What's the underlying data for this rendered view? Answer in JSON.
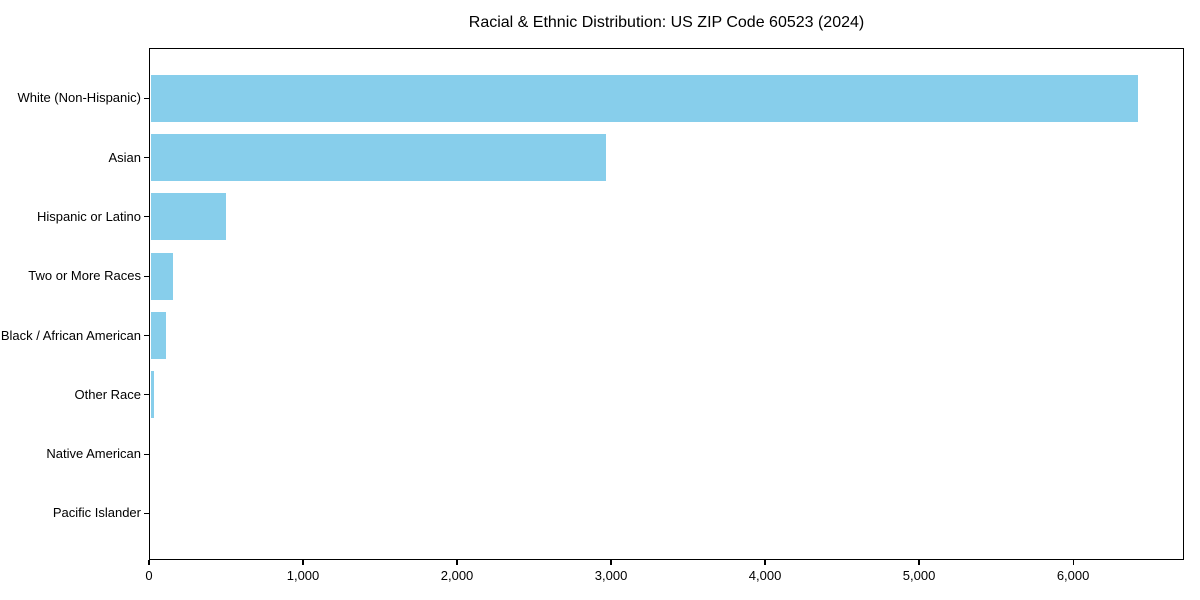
{
  "header": {
    "title": "Racial & Ethnic Distribution: US ZIP Code 60523 (2024)"
  },
  "chart_data": {
    "type": "bar",
    "orientation": "horizontal",
    "title": "Racial & Ethnic Distribution: US ZIP Code 60523 (2024)",
    "categories": [
      "White (Non-Hispanic)",
      "Asian",
      "Hispanic or Latino",
      "Two or More Races",
      "Black / African American",
      "Other Race",
      "Native American",
      "Pacific Islander"
    ],
    "values": [
      6410,
      2960,
      490,
      145,
      100,
      25,
      0,
      0
    ],
    "xlabel": "",
    "ylabel": "",
    "xlim": [
      0,
      6720
    ],
    "x_ticks": [
      0,
      1000,
      2000,
      3000,
      4000,
      5000,
      6000
    ],
    "x_tick_labels": [
      "0",
      "1,000",
      "2,000",
      "3,000",
      "4,000",
      "5,000",
      "6,000"
    ],
    "grid": false,
    "legend": "none",
    "bar_color": "#87CEEB",
    "frame_color": "#000000",
    "text_color": "#000000",
    "background_color": "#ffffff"
  }
}
